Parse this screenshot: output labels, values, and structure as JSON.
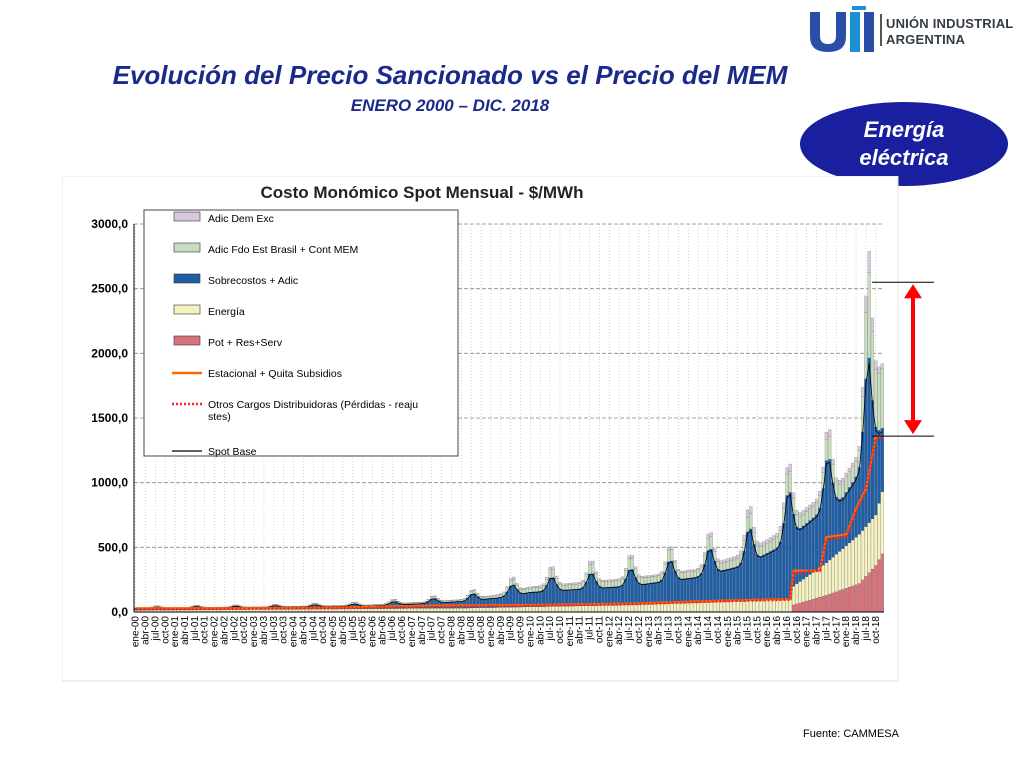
{
  "header": {
    "title": "Evolución del Precio Sancionado vs el Precio del MEM",
    "subtitle": "ENERO 2000 – DIC. 2018",
    "logo_text_line1": "UNIÓN INDUSTRIAL",
    "logo_text_line2": "ARGENTINA",
    "badge_line1": "Energía",
    "badge_line2": "eléctrica"
  },
  "footer": {
    "source": "Fuente:  CAMMESA"
  },
  "colors": {
    "title": "#1a2a8c",
    "badge": "#1a1fa0",
    "pot": "#d9727a",
    "energia": "#f4f2c0",
    "sobrecostos": "#1f5fa8",
    "fdo": "#c8dcc0",
    "dem": "#d8c8dc",
    "estacional": "#ff6a00",
    "otros": "#ff2020",
    "spot": "#000000",
    "arrow": "#ff0000"
  },
  "chart_data": {
    "type": "area",
    "title": "Costo Monómico Spot Mensual - $/MWh",
    "ylim": [
      0,
      3000
    ],
    "yticks": [
      "3000,0",
      "2500,0",
      "2000,0",
      "1500,0",
      "1000,0",
      "500,0",
      "0,0"
    ],
    "x_labels": [
      "ene-00",
      "abr-00",
      "jul-00",
      "oct-00",
      "ene-01",
      "abr-01",
      "jul-01",
      "oct-01",
      "ene-02",
      "abr-02",
      "jul-02",
      "oct-02",
      "ene-03",
      "abr-03",
      "jul-03",
      "oct-03",
      "ene-04",
      "abr-04",
      "jul-04",
      "oct-04",
      "ene-05",
      "abr-05",
      "jul-05",
      "oct-05",
      "ene-06",
      "abr-06",
      "jul-06",
      "oct-06",
      "ene-07",
      "abr-07",
      "jul-07",
      "oct-07",
      "ene-08",
      "abr-08",
      "jul-08",
      "oct-08",
      "ene-09",
      "abr-09",
      "jul-09",
      "oct-09",
      "ene-10",
      "abr-10",
      "jul-10",
      "oct-10",
      "ene-11",
      "abr-11",
      "jul-11",
      "oct-11",
      "ene-12",
      "abr-12",
      "jul-12",
      "oct-12",
      "ene-13",
      "abr-13",
      "jul-13",
      "oct-13",
      "ene-14",
      "abr-14",
      "jul-14",
      "oct-14",
      "ene-15",
      "abr-15",
      "jul-15",
      "oct-15",
      "ene-16",
      "abr-16",
      "jul-16",
      "oct-16",
      "ene-17",
      "abr-17",
      "jul-17",
      "oct-17",
      "ene-18",
      "abr-18",
      "jul-18",
      "oct-18"
    ],
    "legend": [
      {
        "key": "dem",
        "label": "Adic Dem Exc",
        "kind": "box"
      },
      {
        "key": "fdo",
        "label": "Adic Fdo Est  Brasil + Cont MEM",
        "kind": "box"
      },
      {
        "key": "sobrecostos",
        "label": "Sobrecostos + Adic",
        "kind": "box"
      },
      {
        "key": "energia",
        "label": "Energía",
        "kind": "box"
      },
      {
        "key": "pot",
        "label": "Pot + Res+Serv",
        "kind": "box"
      },
      {
        "key": "estacional",
        "label": "Estacional + Quita Subsidios",
        "kind": "line"
      },
      {
        "key": "otros",
        "label": "Otros Cargos Distribuidoras (Pérdidas - reajustes)",
        "kind": "dotted"
      },
      {
        "key": "spot",
        "label": "Spot Base",
        "kind": "line"
      }
    ],
    "series_keypoints": {
      "pot": [
        [
          0,
          0
        ],
        [
          199,
          0
        ],
        [
          200,
          55
        ],
        [
          210,
          130
        ],
        [
          220,
          220
        ],
        [
          225,
          360
        ],
        [
          227,
          450
        ]
      ],
      "energia": [
        [
          0,
          15
        ],
        [
          100,
          30
        ],
        [
          150,
          55
        ],
        [
          180,
          80
        ],
        [
          199,
          95
        ],
        [
          200,
          200
        ],
        [
          210,
          380
        ],
        [
          220,
          600
        ],
        [
          225,
          750
        ],
        [
          227,
          930
        ]
      ],
      "sobrecostos": [
        [
          0,
          35
        ],
        [
          40,
          45
        ],
        [
          70,
          60
        ],
        [
          90,
          95
        ],
        [
          100,
          120
        ],
        [
          110,
          160
        ],
        [
          120,
          230
        ],
        [
          150,
          300
        ],
        [
          170,
          400
        ],
        [
          185,
          550
        ],
        [
          199,
          850
        ],
        [
          210,
          1100
        ],
        [
          215,
          1150
        ],
        [
          220,
          1400
        ],
        [
          223,
          1850
        ],
        [
          227,
          1750
        ]
      ],
      "fdo": [
        [
          0,
          40
        ],
        [
          40,
          50
        ],
        [
          70,
          70
        ],
        [
          90,
          110
        ],
        [
          100,
          140
        ],
        [
          110,
          190
        ],
        [
          120,
          280
        ],
        [
          150,
          380
        ],
        [
          170,
          480
        ],
        [
          185,
          650
        ],
        [
          199,
          1000
        ],
        [
          210,
          1250
        ],
        [
          215,
          1350
        ],
        [
          220,
          1600
        ],
        [
          223,
          2450
        ],
        [
          227,
          2520
        ]
      ],
      "dem": [
        [
          0,
          45
        ],
        [
          40,
          55
        ],
        [
          70,
          75
        ],
        [
          90,
          115
        ],
        [
          100,
          145
        ],
        [
          110,
          200
        ],
        [
          120,
          300
        ],
        [
          150,
          400
        ],
        [
          170,
          500
        ],
        [
          185,
          700
        ],
        [
          199,
          1050
        ],
        [
          210,
          1300
        ],
        [
          215,
          1400
        ],
        [
          220,
          1650
        ],
        [
          223,
          2600
        ],
        [
          227,
          2580
        ]
      ],
      "estacional": [
        [
          0,
          30
        ],
        [
          30,
          30
        ],
        [
          60,
          35
        ],
        [
          90,
          50
        ],
        [
          120,
          55
        ],
        [
          150,
          65
        ],
        [
          180,
          90
        ],
        [
          199,
          100
        ],
        [
          200,
          320
        ],
        [
          208,
          320
        ],
        [
          210,
          580
        ],
        [
          216,
          600
        ],
        [
          219,
          800
        ],
        [
          222,
          950
        ],
        [
          225,
          1350
        ],
        [
          227,
          1360
        ]
      ],
      "otros": [
        [
          0,
          20
        ],
        [
          30,
          25
        ],
        [
          60,
          30
        ],
        [
          90,
          40
        ],
        [
          120,
          50
        ],
        [
          150,
          60
        ],
        [
          180,
          85
        ],
        [
          199,
          95
        ],
        [
          200,
          300
        ],
        [
          208,
          320
        ],
        [
          210,
          560
        ],
        [
          216,
          580
        ],
        [
          219,
          780
        ],
        [
          222,
          930
        ],
        [
          225,
          1340
        ],
        [
          227,
          1350
        ]
      ]
    },
    "peaks": [
      [
        85,
        180
      ],
      [
        105,
        230
      ],
      [
        118,
        330
      ],
      [
        128,
        470
      ],
      [
        140,
        470
      ],
      [
        152,
        520
      ],
      [
        165,
        760
      ],
      [
        175,
        700
      ],
      [
        185,
        780
      ],
      [
        195,
        1400
      ],
      [
        207,
        1400
      ],
      [
        214,
        1200
      ],
      [
        221,
        2800
      ],
      [
        225,
        2300
      ]
    ]
  }
}
